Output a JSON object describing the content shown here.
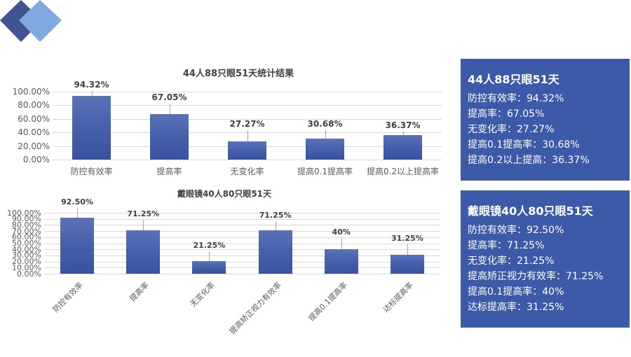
{
  "colors": {
    "bar": "#4560ab",
    "panel": "#3b5aa8",
    "logo_dark": "#3f5590",
    "logo_light": "#7fa9e0"
  },
  "chart_data": [
    {
      "type": "bar",
      "title": "44人88只眼51天统计结果",
      "categories": [
        "防控有效率",
        "提高率",
        "无变化率",
        "提高0.1提高率",
        "提高0.2以上提高率"
      ],
      "values": [
        94.32,
        67.05,
        27.27,
        30.68,
        36.37
      ],
      "value_labels": [
        "94.32%",
        "67.05%",
        "27.27%",
        "30.68%",
        "36.37%"
      ],
      "yticks": [
        "100.00%",
        "80.00%",
        "60.00%",
        "40.00%",
        "20.00%",
        "0.00%"
      ],
      "ylim": [
        0,
        100
      ],
      "xlabel": "",
      "ylabel": "",
      "grid": true,
      "legend": "none"
    },
    {
      "type": "bar",
      "title": "戴眼镜40人80只眼51天",
      "categories": [
        "防控有效率",
        "提高率",
        "无变化率",
        "提高矫正视力有效率",
        "提高0.1提高率",
        "达标提高率"
      ],
      "values": [
        92.5,
        71.25,
        21.25,
        71.25,
        40,
        31.25
      ],
      "value_labels": [
        "92.50%",
        "71.25%",
        "21.25%",
        "71.25%",
        "40%",
        "31.25%"
      ],
      "yticks": [
        "100.00%",
        "90.00%",
        "80.00%",
        "70.00%",
        "60.00%",
        "50.00%",
        "40.00%",
        "30.00%",
        "20.00%",
        "10.00%",
        "0.00%"
      ],
      "ylim": [
        0,
        100
      ],
      "xlabel": "",
      "ylabel": "",
      "grid": true,
      "legend": "none"
    }
  ],
  "panels": [
    {
      "title": "44人88只眼51天",
      "lines": [
        "防控有效率：94.32%",
        "提高率：67.05%",
        "无变化率：27.27%",
        "提高0.1提高率：30.68%",
        "提高0.2以上提高：36.37%"
      ]
    },
    {
      "title": "戴眼镜40人80只眼51天",
      "lines": [
        "防控有效率：92.50%",
        "提高率：71.25%",
        "无变化率：21.25%",
        "提高矫正视力有效率：71.25%",
        "提高0.1提高率：40%",
        "达标提高率：31.25%"
      ]
    }
  ]
}
